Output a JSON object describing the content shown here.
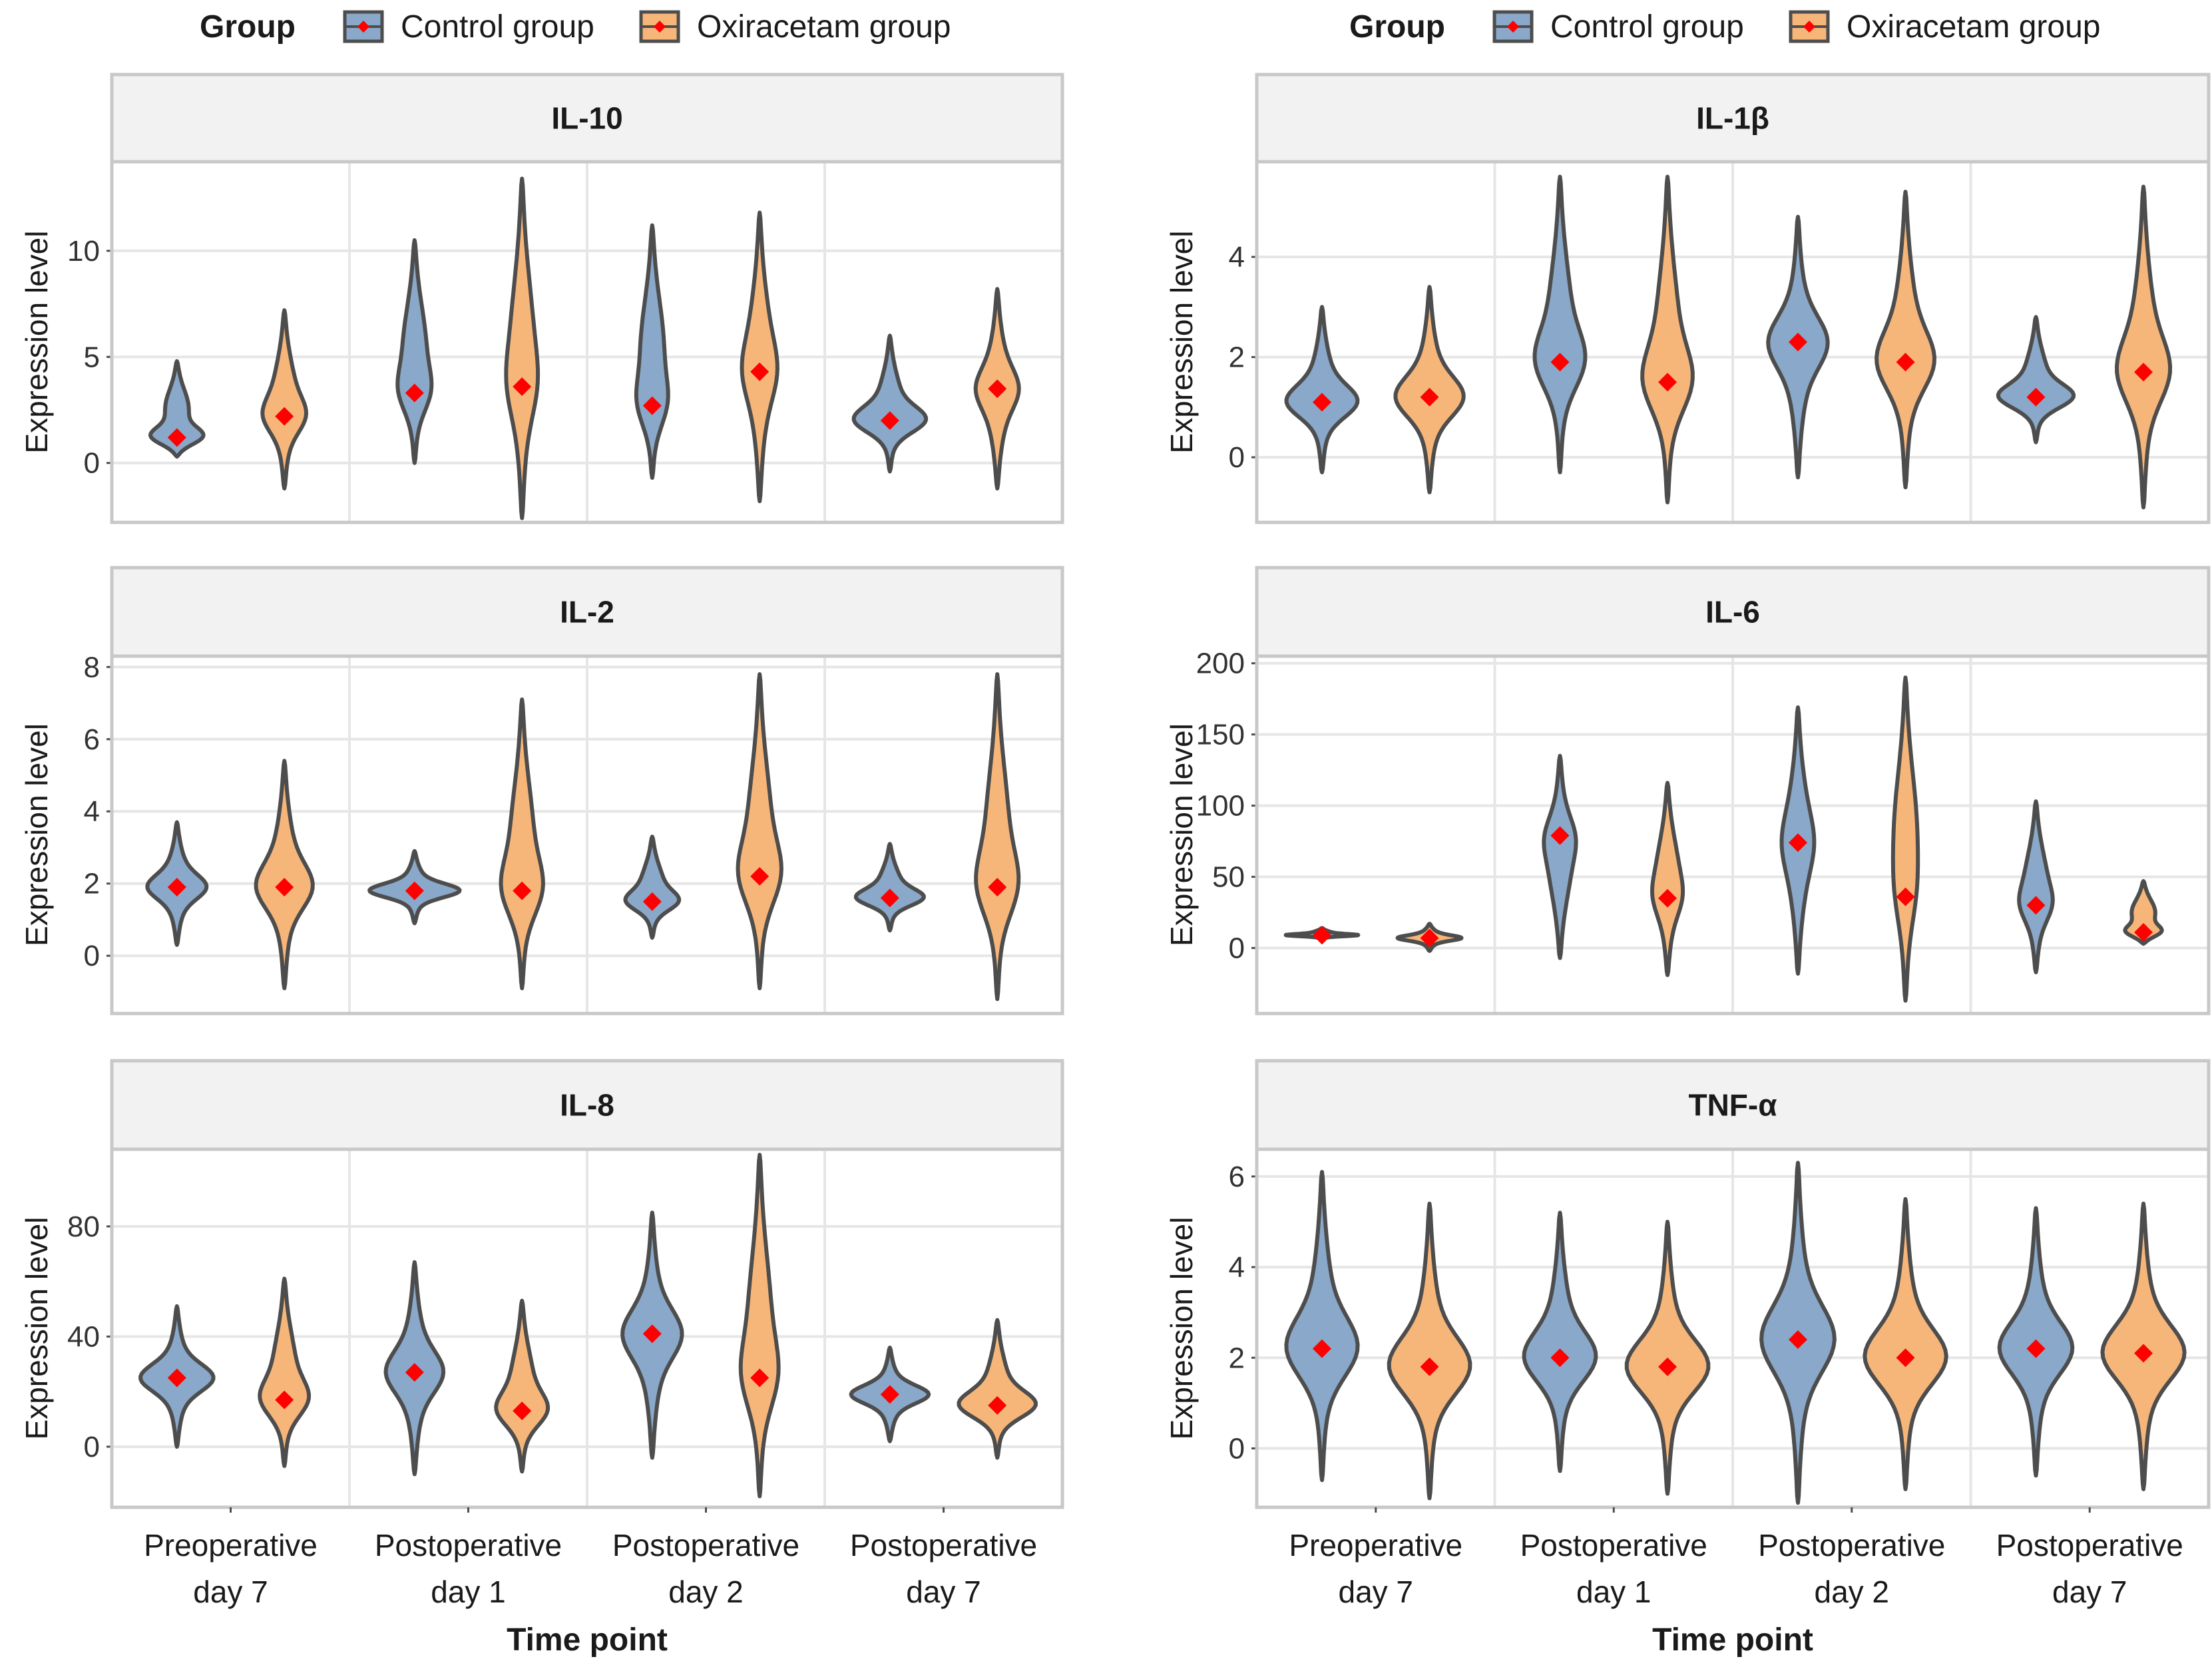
{
  "legend": {
    "title": "Group",
    "items": [
      {
        "label": "Control group",
        "color": "#8aa8c9"
      },
      {
        "label": "Oxiracetam group",
        "color": "#f6b67a"
      }
    ]
  },
  "axis_labels": {
    "x": "Time point",
    "y": "Expression level"
  },
  "time_points": [
    [
      "Preoperative",
      "day 7"
    ],
    [
      "Postoperative",
      "day 1"
    ],
    [
      "Postoperative",
      "day 2"
    ],
    [
      "Postoperative",
      "day 7"
    ]
  ],
  "colors": {
    "control": "#8aa8c9",
    "oxiracetam": "#f6b67a",
    "mean_marker": "#ff0000",
    "outline": "#4d4d4d",
    "strip": "#f2f2f2",
    "grid": "#e6e6e6"
  },
  "chart_data": [
    {
      "type": "violin",
      "title": "IL-10",
      "xlabel": "Time point",
      "ylabel": "Expression level",
      "ylim": [
        -2.8,
        14.2
      ],
      "yticks": [
        0,
        5,
        10
      ],
      "categories": [
        "Preoperative day 7",
        "Postoperative day 1",
        "Postoperative day 2",
        "Postoperative day 7"
      ],
      "series": [
        {
          "name": "Control group",
          "means": [
            1.2,
            3.3,
            2.7,
            2.0
          ],
          "min": [
            0.3,
            0.0,
            -0.7,
            -0.4
          ],
          "max": [
            4.8,
            10.5,
            11.2,
            6.0
          ],
          "mode_width": [
            0.6,
            0.2,
            0.2,
            0.6
          ]
        },
        {
          "name": "Oxiracetam group",
          "means": [
            2.2,
            3.6,
            4.3,
            3.5
          ],
          "min": [
            -1.2,
            -2.6,
            -1.8,
            -1.2
          ],
          "max": [
            7.2,
            13.4,
            11.8,
            8.2
          ],
          "mode_width": [
            0.25,
            0.12,
            0.14,
            0.22
          ]
        }
      ]
    },
    {
      "type": "violin",
      "title": "IL-1β",
      "xlabel": "Time point",
      "ylabel": "Expression level",
      "ylim": [
        -1.3,
        5.9
      ],
      "yticks": [
        0,
        2,
        4
      ],
      "categories": [
        "Preoperative day 7",
        "Postoperative day 1",
        "Postoperative day 2",
        "Postoperative day 7"
      ],
      "series": [
        {
          "name": "Control group",
          "means": [
            1.1,
            1.9,
            2.3,
            1.2
          ],
          "min": [
            -0.3,
            -0.3,
            -0.4,
            0.3
          ],
          "max": [
            3.0,
            5.6,
            4.8,
            2.8
          ],
          "mode_width": [
            0.55,
            0.35,
            0.4,
            0.65
          ]
        },
        {
          "name": "Oxiracetam group",
          "means": [
            1.2,
            1.5,
            1.9,
            1.7
          ],
          "min": [
            -0.7,
            -0.9,
            -0.6,
            -1.0
          ],
          "max": [
            3.4,
            5.6,
            5.3,
            5.4
          ],
          "mode_width": [
            0.5,
            0.35,
            0.4,
            0.35
          ]
        }
      ]
    },
    {
      "type": "violin",
      "title": "IL-2",
      "xlabel": "Time point",
      "ylabel": "Expression level",
      "ylim": [
        -1.6,
        8.3
      ],
      "yticks": [
        0,
        2,
        4,
        6,
        8
      ],
      "categories": [
        "Preoperative day 7",
        "Postoperative day 1",
        "Postoperative day 2",
        "Postoperative day 7"
      ],
      "series": [
        {
          "name": "Control group",
          "means": [
            1.9,
            1.8,
            1.5,
            1.6
          ],
          "min": [
            0.3,
            0.9,
            0.5,
            0.7
          ],
          "max": [
            3.7,
            2.9,
            3.3,
            3.1
          ],
          "mode_width": [
            0.4,
            0.75,
            0.4,
            0.55
          ]
        },
        {
          "name": "Oxiracetam group",
          "means": [
            1.9,
            1.8,
            2.2,
            1.9
          ],
          "min": [
            -0.9,
            -0.9,
            -0.9,
            -1.2
          ],
          "max": [
            5.4,
            7.1,
            7.8,
            7.8
          ],
          "mode_width": [
            0.38,
            0.28,
            0.28,
            0.28
          ]
        }
      ]
    },
    {
      "type": "violin",
      "title": "IL-6",
      "xlabel": "Time point",
      "ylabel": "Expression level",
      "ylim": [
        -46,
        205
      ],
      "yticks": [
        0,
        50,
        100,
        150,
        200
      ],
      "categories": [
        "Preoperative day 7",
        "Postoperative day 1",
        "Postoperative day 2",
        "Postoperative day 7"
      ],
      "series": [
        {
          "name": "Control group",
          "means": [
            9,
            79,
            74,
            30
          ],
          "min": [
            6,
            -7,
            -18,
            -17
          ],
          "max": [
            14,
            135,
            169,
            103
          ],
          "mode_width": [
            0.6,
            0.12,
            0.1,
            0.14
          ]
        },
        {
          "name": "Oxiracetam group",
          "means": [
            7,
            35,
            36,
            11
          ],
          "min": [
            -2,
            -19,
            -37,
            3
          ],
          "max": [
            17,
            116,
            190,
            47
          ],
          "mode_width": [
            0.45,
            0.1,
            0.06,
            0.4
          ]
        }
      ]
    },
    {
      "type": "violin",
      "title": "IL-8",
      "xlabel": "Time point",
      "ylabel": "Expression level",
      "ylim": [
        -22,
        108
      ],
      "yticks": [
        0,
        40,
        80
      ],
      "categories": [
        "Preoperative day 7",
        "Postoperative day 1",
        "Postoperative day 2",
        "Postoperative day 7"
      ],
      "series": [
        {
          "name": "Control group",
          "means": [
            25,
            27,
            41,
            19
          ],
          "min": [
            0,
            -10,
            -4,
            2
          ],
          "max": [
            51,
            67,
            85,
            36
          ],
          "mode_width": [
            0.55,
            0.38,
            0.4,
            0.6
          ]
        },
        {
          "name": "Oxiracetam group",
          "means": [
            17,
            13,
            25,
            15
          ],
          "min": [
            -7,
            -9,
            -18,
            -4
          ],
          "max": [
            61,
            53,
            106,
            46
          ],
          "mode_width": [
            0.35,
            0.38,
            0.22,
            0.65
          ]
        }
      ]
    },
    {
      "type": "violin",
      "title": "TNF-α",
      "xlabel": "Time point",
      "ylabel": "Expression level",
      "ylim": [
        -1.3,
        6.6
      ],
      "yticks": [
        0,
        2,
        4,
        6
      ],
      "categories": [
        "Preoperative day 7",
        "Postoperative day 1",
        "Postoperative day 2",
        "Postoperative day 7"
      ],
      "series": [
        {
          "name": "Control group",
          "means": [
            2.2,
            2.0,
            2.4,
            2.2
          ],
          "min": [
            -0.7,
            -0.5,
            -1.2,
            -0.6
          ],
          "max": [
            6.1,
            5.2,
            6.3,
            5.3
          ],
          "mode_width": [
            0.55,
            0.55,
            0.55,
            0.55
          ]
        },
        {
          "name": "Oxiracetam group",
          "means": [
            1.8,
            1.8,
            2.0,
            2.1
          ],
          "min": [
            -1.1,
            -1.0,
            -0.9,
            -0.9
          ],
          "max": [
            5.4,
            5.0,
            5.5,
            5.4
          ],
          "mode_width": [
            0.65,
            0.65,
            0.65,
            0.65
          ]
        }
      ]
    }
  ]
}
